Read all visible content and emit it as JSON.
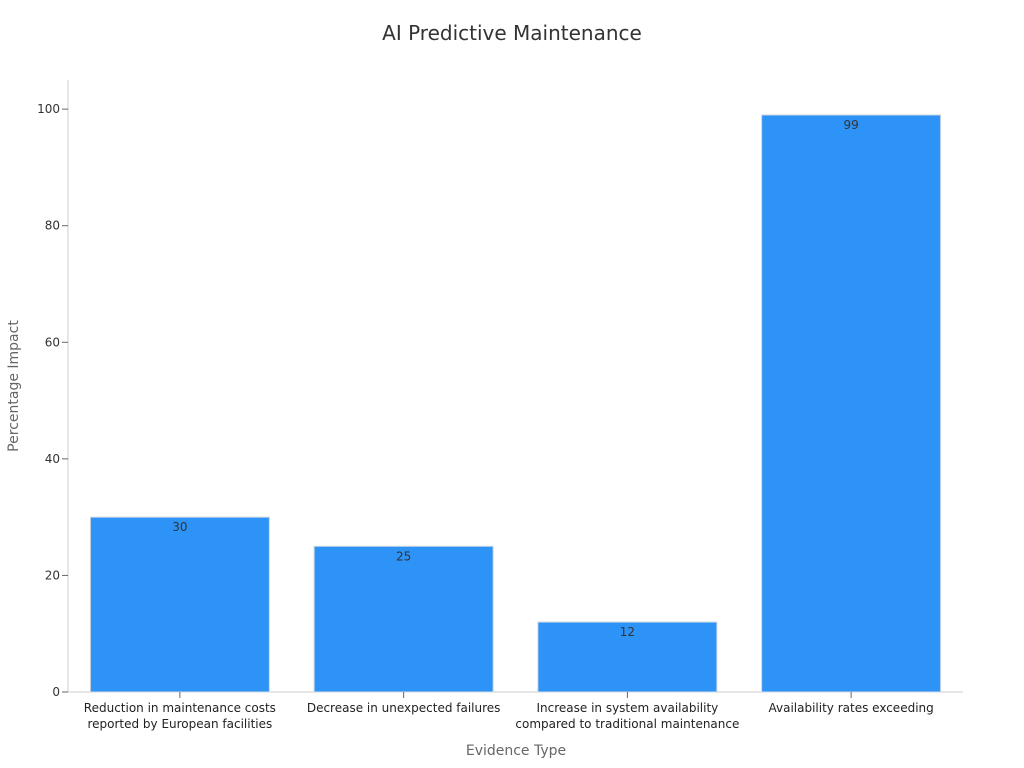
{
  "chart_data": {
    "type": "bar",
    "title": "AI Predictive Maintenance",
    "xlabel": "Evidence Type",
    "ylabel": "Percentage Impact",
    "ylim": [
      0,
      105
    ],
    "yticks": [
      0,
      20,
      40,
      60,
      80,
      100
    ],
    "categories": [
      [
        "Reduction in maintenance costs",
        "reported by European facilities"
      ],
      [
        "Decrease in unexpected failures"
      ],
      [
        "Increase in system availability",
        "compared to traditional maintenance"
      ],
      [
        "Availability rates exceeding"
      ]
    ],
    "values": [
      30,
      25,
      12,
      99
    ],
    "bar_color": "#2e93f7",
    "grid": false,
    "legend": "none"
  }
}
